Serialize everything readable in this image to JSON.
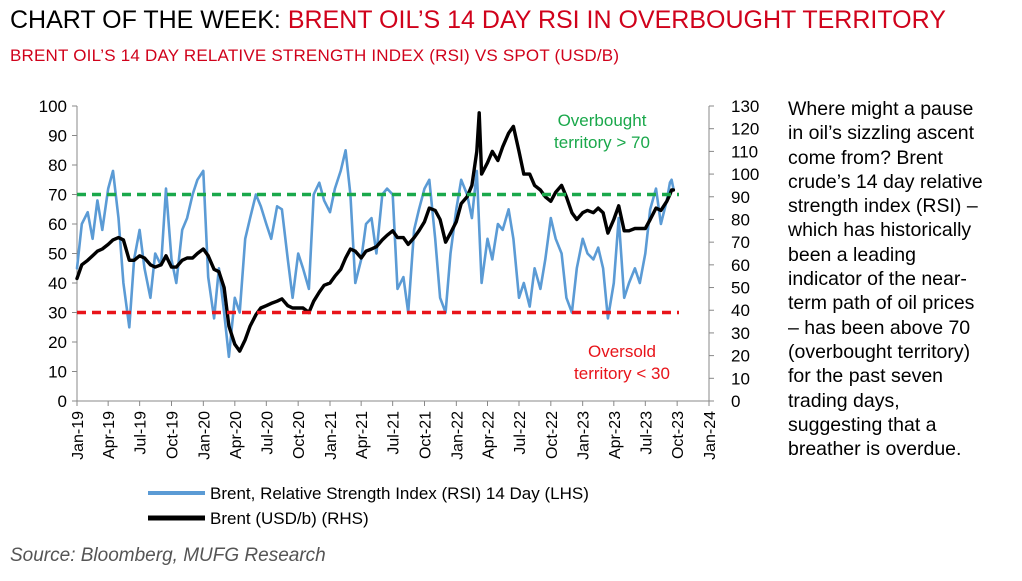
{
  "header": {
    "title_prefix": "CHART OF THE WEEK: ",
    "title_accent": "BRENT OIL’S 14 DAY RSI IN OVERBOUGHT TERRITORY",
    "subtitle": "BRENT OIL’S 14 DAY RELATIVE STRENGTH INDEX (RSI) VS SPOT (USD/B)"
  },
  "commentary": {
    "lines": [
      "Where might a pause",
      "in oil’s sizzling ascent",
      "come from? Brent",
      "crude’s 14 day relative",
      "strength index (RSI) –",
      "which has historically",
      "been a leading",
      "indicator of the near-",
      "term path of oil prices",
      "– has been above 70",
      "(overbought territory)",
      "for the past seven",
      "trading days,",
      "suggesting that a",
      "breather is overdue."
    ]
  },
  "source": "Source: Bloomberg, MUFG Research",
  "colors": {
    "rsi": "#5b9bd5",
    "price": "#000000",
    "overbought": "#1aa84b",
    "oversold": "#e8141a",
    "accent": "#d0021b"
  },
  "chart_data": {
    "type": "line",
    "x_tick_labels": [
      "Jan-19",
      "Apr-19",
      "Jul-19",
      "Oct-19",
      "Jan-20",
      "Apr-20",
      "Jul-20",
      "Oct-20",
      "Jan-21",
      "Apr-21",
      "Jul-21",
      "Oct-21",
      "Jan-22",
      "Apr-22",
      "Jul-22",
      "Oct-22",
      "Jan-23",
      "Apr-23",
      "Jul-23",
      "Oct-23",
      "Jan-24"
    ],
    "x_tick_dates": [
      "2019-01-01",
      "2019-04-01",
      "2019-07-01",
      "2019-10-01",
      "2020-01-01",
      "2020-04-01",
      "2020-07-01",
      "2020-10-01",
      "2021-01-01",
      "2021-04-01",
      "2021-07-01",
      "2021-10-01",
      "2022-01-01",
      "2022-04-01",
      "2022-07-01",
      "2022-10-01",
      "2023-01-01",
      "2023-04-01",
      "2023-07-01",
      "2023-10-01",
      "2024-01-01"
    ],
    "left_axis": {
      "ylim": [
        0,
        100
      ],
      "ticks": [
        "0",
        "10",
        "20",
        "30",
        "40",
        "50",
        "60",
        "70",
        "80",
        "90",
        "100"
      ]
    },
    "right_axis": {
      "ylim": [
        0,
        130
      ],
      "ticks": [
        "0",
        "10",
        "20",
        "30",
        "40",
        "50",
        "60",
        "70",
        "80",
        "90",
        "100",
        "110",
        "120",
        "130"
      ]
    },
    "reference_lines": [
      {
        "axis": "left",
        "y": 70,
        "label_lines": [
          "Overbought",
          "territory > 70"
        ]
      },
      {
        "axis": "left",
        "y": 30,
        "label_lines": [
          "Oversold",
          "territory < 30"
        ]
      }
    ],
    "legend": {
      "placement": "bottom"
    },
    "series": [
      {
        "name": "Brent, Relative Strength Index (RSI) 14 Day (LHS)",
        "axis": "left",
        "points": [
          [
            "2019-01-01",
            45
          ],
          [
            "2019-01-15",
            60
          ],
          [
            "2019-02-01",
            64
          ],
          [
            "2019-02-15",
            55
          ],
          [
            "2019-03-01",
            68
          ],
          [
            "2019-03-15",
            58
          ],
          [
            "2019-04-01",
            72
          ],
          [
            "2019-04-15",
            78
          ],
          [
            "2019-05-01",
            62
          ],
          [
            "2019-05-15",
            40
          ],
          [
            "2019-06-01",
            25
          ],
          [
            "2019-06-15",
            48
          ],
          [
            "2019-07-01",
            58
          ],
          [
            "2019-07-15",
            45
          ],
          [
            "2019-08-01",
            35
          ],
          [
            "2019-08-15",
            50
          ],
          [
            "2019-09-01",
            46
          ],
          [
            "2019-09-15",
            72
          ],
          [
            "2019-10-01",
            48
          ],
          [
            "2019-10-15",
            40
          ],
          [
            "2019-11-01",
            58
          ],
          [
            "2019-11-15",
            62
          ],
          [
            "2019-12-01",
            70
          ],
          [
            "2019-12-15",
            75
          ],
          [
            "2020-01-01",
            78
          ],
          [
            "2020-01-15",
            42
          ],
          [
            "2020-02-01",
            28
          ],
          [
            "2020-02-15",
            45
          ],
          [
            "2020-03-01",
            30
          ],
          [
            "2020-03-15",
            15
          ],
          [
            "2020-04-01",
            35
          ],
          [
            "2020-04-15",
            30
          ],
          [
            "2020-05-01",
            55
          ],
          [
            "2020-05-15",
            62
          ],
          [
            "2020-06-01",
            70
          ],
          [
            "2020-06-15",
            66
          ],
          [
            "2020-07-01",
            60
          ],
          [
            "2020-07-15",
            55
          ],
          [
            "2020-08-01",
            66
          ],
          [
            "2020-08-15",
            65
          ],
          [
            "2020-09-01",
            48
          ],
          [
            "2020-09-15",
            35
          ],
          [
            "2020-10-01",
            50
          ],
          [
            "2020-10-15",
            45
          ],
          [
            "2020-11-01",
            38
          ],
          [
            "2020-11-15",
            70
          ],
          [
            "2020-12-01",
            74
          ],
          [
            "2020-12-15",
            68
          ],
          [
            "2021-01-01",
            64
          ],
          [
            "2021-01-15",
            72
          ],
          [
            "2021-02-01",
            78
          ],
          [
            "2021-02-15",
            85
          ],
          [
            "2021-03-01",
            70
          ],
          [
            "2021-03-15",
            40
          ],
          [
            "2021-04-01",
            48
          ],
          [
            "2021-04-15",
            60
          ],
          [
            "2021-05-01",
            62
          ],
          [
            "2021-05-15",
            50
          ],
          [
            "2021-06-01",
            70
          ],
          [
            "2021-06-15",
            72
          ],
          [
            "2021-07-01",
            70
          ],
          [
            "2021-07-15",
            38
          ],
          [
            "2021-08-01",
            42
          ],
          [
            "2021-08-15",
            30
          ],
          [
            "2021-09-01",
            58
          ],
          [
            "2021-09-15",
            65
          ],
          [
            "2021-10-01",
            72
          ],
          [
            "2021-10-15",
            75
          ],
          [
            "2021-11-01",
            55
          ],
          [
            "2021-11-15",
            35
          ],
          [
            "2021-12-01",
            30
          ],
          [
            "2021-12-15",
            50
          ],
          [
            "2022-01-01",
            65
          ],
          [
            "2022-01-15",
            75
          ],
          [
            "2022-02-01",
            70
          ],
          [
            "2022-02-15",
            62
          ],
          [
            "2022-03-01",
            78
          ],
          [
            "2022-03-15",
            40
          ],
          [
            "2022-04-01",
            55
          ],
          [
            "2022-04-15",
            48
          ],
          [
            "2022-05-01",
            60
          ],
          [
            "2022-05-15",
            58
          ],
          [
            "2022-06-01",
            65
          ],
          [
            "2022-06-15",
            55
          ],
          [
            "2022-07-01",
            35
          ],
          [
            "2022-07-15",
            40
          ],
          [
            "2022-08-01",
            32
          ],
          [
            "2022-08-15",
            45
          ],
          [
            "2022-09-01",
            38
          ],
          [
            "2022-09-15",
            48
          ],
          [
            "2022-10-01",
            62
          ],
          [
            "2022-10-15",
            55
          ],
          [
            "2022-11-01",
            50
          ],
          [
            "2022-11-15",
            35
          ],
          [
            "2022-12-01",
            30
          ],
          [
            "2022-12-15",
            45
          ],
          [
            "2023-01-01",
            55
          ],
          [
            "2023-01-15",
            50
          ],
          [
            "2023-02-01",
            48
          ],
          [
            "2023-02-15",
            52
          ],
          [
            "2023-03-01",
            45
          ],
          [
            "2023-03-15",
            28
          ],
          [
            "2023-04-01",
            40
          ],
          [
            "2023-04-15",
            62
          ],
          [
            "2023-05-01",
            35
          ],
          [
            "2023-05-15",
            40
          ],
          [
            "2023-06-01",
            45
          ],
          [
            "2023-06-15",
            40
          ],
          [
            "2023-07-01",
            50
          ],
          [
            "2023-07-15",
            65
          ],
          [
            "2023-08-01",
            72
          ],
          [
            "2023-08-15",
            60
          ],
          [
            "2023-09-01",
            68
          ],
          [
            "2023-09-10",
            74
          ],
          [
            "2023-09-15",
            75
          ],
          [
            "2023-09-20",
            72
          ]
        ]
      },
      {
        "name": "Brent (USD/b) (RHS)",
        "axis": "right",
        "points": [
          [
            "2019-01-01",
            54
          ],
          [
            "2019-01-15",
            60
          ],
          [
            "2019-02-01",
            62
          ],
          [
            "2019-02-15",
            64
          ],
          [
            "2019-03-01",
            66
          ],
          [
            "2019-03-15",
            67
          ],
          [
            "2019-04-01",
            69
          ],
          [
            "2019-04-15",
            71
          ],
          [
            "2019-05-01",
            72
          ],
          [
            "2019-05-15",
            71
          ],
          [
            "2019-06-01",
            62
          ],
          [
            "2019-06-15",
            62
          ],
          [
            "2019-07-01",
            64
          ],
          [
            "2019-07-15",
            63
          ],
          [
            "2019-08-01",
            60
          ],
          [
            "2019-08-15",
            59
          ],
          [
            "2019-09-01",
            60
          ],
          [
            "2019-09-15",
            64
          ],
          [
            "2019-10-01",
            59
          ],
          [
            "2019-10-15",
            59
          ],
          [
            "2019-11-01",
            62
          ],
          [
            "2019-11-15",
            63
          ],
          [
            "2019-12-01",
            63
          ],
          [
            "2019-12-15",
            65
          ],
          [
            "2020-01-01",
            67
          ],
          [
            "2020-01-15",
            64
          ],
          [
            "2020-02-01",
            58
          ],
          [
            "2020-02-15",
            57
          ],
          [
            "2020-03-01",
            50
          ],
          [
            "2020-03-15",
            33
          ],
          [
            "2020-04-01",
            25
          ],
          [
            "2020-04-15",
            22
          ],
          [
            "2020-05-01",
            27
          ],
          [
            "2020-05-15",
            33
          ],
          [
            "2020-06-01",
            38
          ],
          [
            "2020-06-15",
            41
          ],
          [
            "2020-07-01",
            42
          ],
          [
            "2020-07-15",
            43
          ],
          [
            "2020-08-01",
            44
          ],
          [
            "2020-08-15",
            45
          ],
          [
            "2020-09-01",
            42
          ],
          [
            "2020-09-15",
            41
          ],
          [
            "2020-10-01",
            41
          ],
          [
            "2020-10-15",
            41
          ],
          [
            "2020-11-01",
            39
          ],
          [
            "2020-11-15",
            44
          ],
          [
            "2020-12-01",
            48
          ],
          [
            "2020-12-15",
            51
          ],
          [
            "2021-01-01",
            52
          ],
          [
            "2021-01-15",
            55
          ],
          [
            "2021-02-01",
            58
          ],
          [
            "2021-02-15",
            63
          ],
          [
            "2021-03-01",
            67
          ],
          [
            "2021-03-15",
            66
          ],
          [
            "2021-04-01",
            63
          ],
          [
            "2021-04-15",
            66
          ],
          [
            "2021-05-01",
            67
          ],
          [
            "2021-05-15",
            68
          ],
          [
            "2021-06-01",
            71
          ],
          [
            "2021-06-15",
            73
          ],
          [
            "2021-07-01",
            75
          ],
          [
            "2021-07-15",
            72
          ],
          [
            "2021-08-01",
            72
          ],
          [
            "2021-08-15",
            69
          ],
          [
            "2021-09-01",
            72
          ],
          [
            "2021-09-15",
            75
          ],
          [
            "2021-10-01",
            79
          ],
          [
            "2021-10-15",
            85
          ],
          [
            "2021-11-01",
            84
          ],
          [
            "2021-11-15",
            80
          ],
          [
            "2021-12-01",
            70
          ],
          [
            "2021-12-15",
            74
          ],
          [
            "2022-01-01",
            79
          ],
          [
            "2022-01-15",
            87
          ],
          [
            "2022-02-01",
            90
          ],
          [
            "2022-02-15",
            95
          ],
          [
            "2022-03-01",
            110
          ],
          [
            "2022-03-08",
            127
          ],
          [
            "2022-03-15",
            100
          ],
          [
            "2022-04-01",
            105
          ],
          [
            "2022-04-15",
            110
          ],
          [
            "2022-05-01",
            106
          ],
          [
            "2022-05-15",
            112
          ],
          [
            "2022-06-01",
            118
          ],
          [
            "2022-06-15",
            121
          ],
          [
            "2022-07-01",
            110
          ],
          [
            "2022-07-15",
            100
          ],
          [
            "2022-08-01",
            100
          ],
          [
            "2022-08-15",
            95
          ],
          [
            "2022-09-01",
            93
          ],
          [
            "2022-09-15",
            90
          ],
          [
            "2022-10-01",
            88
          ],
          [
            "2022-10-15",
            92
          ],
          [
            "2022-11-01",
            95
          ],
          [
            "2022-11-15",
            90
          ],
          [
            "2022-12-01",
            83
          ],
          [
            "2022-12-15",
            80
          ],
          [
            "2023-01-01",
            83
          ],
          [
            "2023-01-15",
            84
          ],
          [
            "2023-02-01",
            83
          ],
          [
            "2023-02-15",
            85
          ],
          [
            "2023-03-01",
            83
          ],
          [
            "2023-03-15",
            74
          ],
          [
            "2023-04-01",
            80
          ],
          [
            "2023-04-15",
            86
          ],
          [
            "2023-05-01",
            75
          ],
          [
            "2023-05-15",
            75
          ],
          [
            "2023-06-01",
            76
          ],
          [
            "2023-06-15",
            76
          ],
          [
            "2023-07-01",
            76
          ],
          [
            "2023-07-15",
            80
          ],
          [
            "2023-08-01",
            85
          ],
          [
            "2023-08-15",
            84
          ],
          [
            "2023-09-01",
            88
          ],
          [
            "2023-09-10",
            91
          ],
          [
            "2023-09-15",
            93
          ],
          [
            "2023-09-20",
            93
          ]
        ]
      }
    ]
  }
}
